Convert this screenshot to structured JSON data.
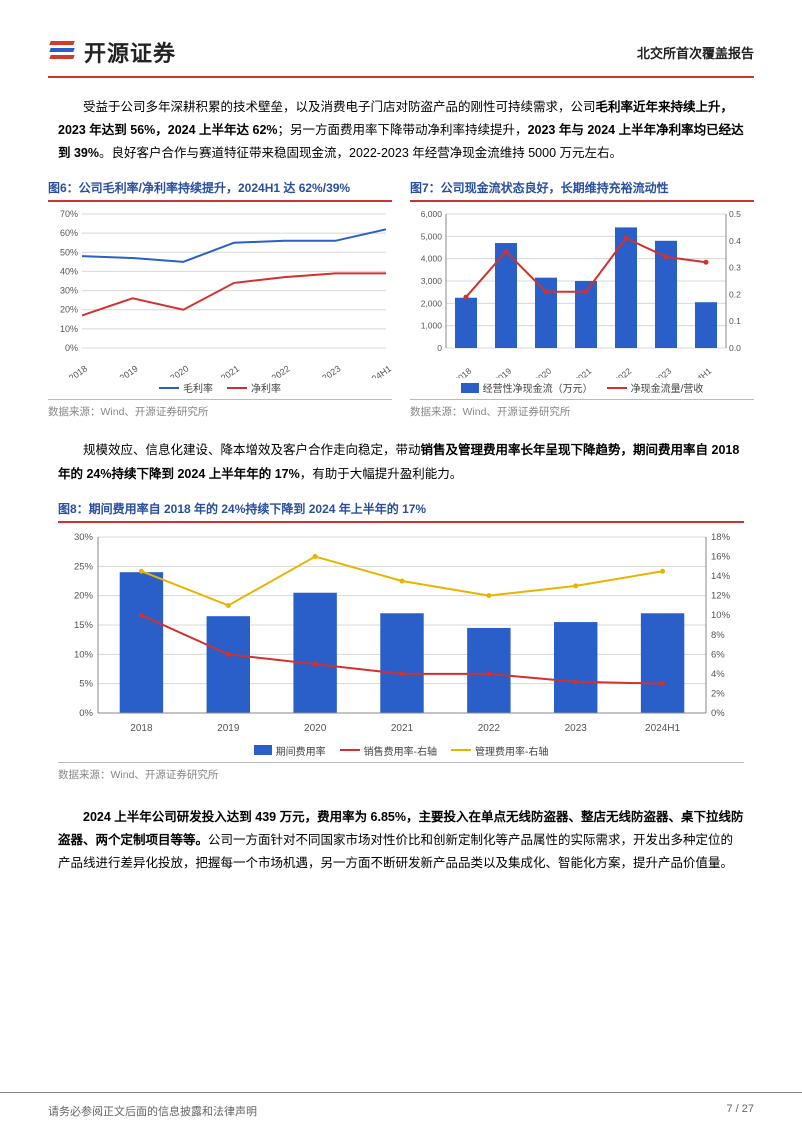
{
  "header": {
    "company": "开源证券",
    "doc_type": "北交所首次覆盖报告"
  },
  "para1": {
    "t1": "受益于公司多年深耕积累的技术壁垒，以及消费电子门店对防盗产品的刚性可持续需求，公司",
    "b1": "毛利率近年来持续上升，2023 年达到 56%，2024 上半年达 62%",
    "t2": "；另一方面费用率下降带动净利率持续提升，",
    "b2": "2023 年与 2024 上半年净利率均已经达到 39%",
    "t3": "。良好客户合作与赛道特征带来稳固现金流，2022-2023 年经营净现金流维持 5000 万元左右。"
  },
  "fig6": {
    "title": "图6：公司毛利率/净利率持续提升，2024H1 达 62%/39%",
    "type": "line",
    "categories": [
      "2018",
      "2019",
      "2020",
      "2021",
      "2022",
      "2023",
      "2024H1"
    ],
    "series": [
      {
        "name": "毛利率",
        "color": "#2a5fc9",
        "values": [
          48,
          47,
          45,
          55,
          56,
          56,
          62
        ]
      },
      {
        "name": "净利率",
        "color": "#d1322d",
        "values": [
          17,
          26,
          20,
          34,
          37,
          39,
          39
        ]
      }
    ],
    "ylim": [
      0,
      70
    ],
    "ystep": 10,
    "y_suffix": "%",
    "grid_color": "#d8d8d8"
  },
  "fig7": {
    "title": "图7：公司现金流状态良好，长期维持充裕流动性",
    "type": "bar+line",
    "categories": [
      "2018",
      "2019",
      "2020",
      "2021",
      "2022",
      "2023",
      "2024H1"
    ],
    "bar": {
      "name": "经营性净现金流（万元）",
      "color": "#2a5fc9",
      "values": [
        2250,
        4700,
        3150,
        3000,
        5400,
        4800,
        2050
      ]
    },
    "line": {
      "name": "净现金流量/营收",
      "color": "#d1322d",
      "values": [
        0.19,
        0.36,
        0.21,
        0.21,
        0.41,
        0.34,
        0.32
      ]
    },
    "ylim_l": [
      0,
      6000
    ],
    "ystep_l": 1000,
    "ylim_r": [
      0,
      0.5
    ],
    "ystep_r": 0.1,
    "grid_color": "#d8d8d8"
  },
  "para2": {
    "t1": "规模效应、信息化建设、降本增效及客户合作走向稳定，带动",
    "b1": "销售及管理费用率长年呈现下降趋势，期间费用率自 2018 年的 24%持续下降到 2024 上半年年的 17%",
    "t2": "，有助于大幅提升盈利能力。"
  },
  "fig8": {
    "title": "图8：期间费用率自 2018 年的 24%持续下降到 2024 年上半年的 17%",
    "type": "bar+2line",
    "categories": [
      "2018",
      "2019",
      "2020",
      "2021",
      "2022",
      "2023",
      "2024H1"
    ],
    "bar": {
      "name": "期间费用率",
      "color": "#2a5fc9",
      "values": [
        24,
        16.5,
        20.5,
        17,
        14.5,
        15.5,
        17
      ]
    },
    "line1": {
      "name": "销售费用率-右轴",
      "color": "#d1322d",
      "values": [
        10,
        6,
        5,
        4,
        4,
        3.2,
        3
      ]
    },
    "line2": {
      "name": "管理费用率-右轴",
      "color": "#e8b400",
      "values": [
        14.5,
        11,
        16,
        13.5,
        12,
        13,
        14.5
      ]
    },
    "ylim_l": [
      0,
      30
    ],
    "ystep_l": 5,
    "yl_suffix": "%",
    "ylim_r": [
      0,
      18
    ],
    "ystep_r": 2,
    "yr_suffix": "%",
    "grid_color": "#d8d8d8"
  },
  "para3": {
    "b1": "2024 上半年公司研发投入达到 439 万元，费用率为 6.85%，主要投入在单点无线防盗器、整店无线防盗器、桌下拉线防盗器、两个定制项目等等。",
    "t1": "公司一方面针对不同国家市场对性价比和创新定制化等产品属性的实际需求，开发出多种定位的产品线进行差异化投放，把握每一个市场机遇，另一方面不断研发新产品品类以及集成化、智能化方案，提升产品价值量。"
  },
  "source": "数据来源：Wind、开源证券研究所",
  "footer": {
    "left": "请务必参阅正文后面的信息披露和法律声明",
    "right": "7 / 27"
  },
  "colors": {
    "accent_red": "#c33",
    "title_blue": "#2a4f9e",
    "axis": "#888",
    "tick_font": "#555"
  }
}
